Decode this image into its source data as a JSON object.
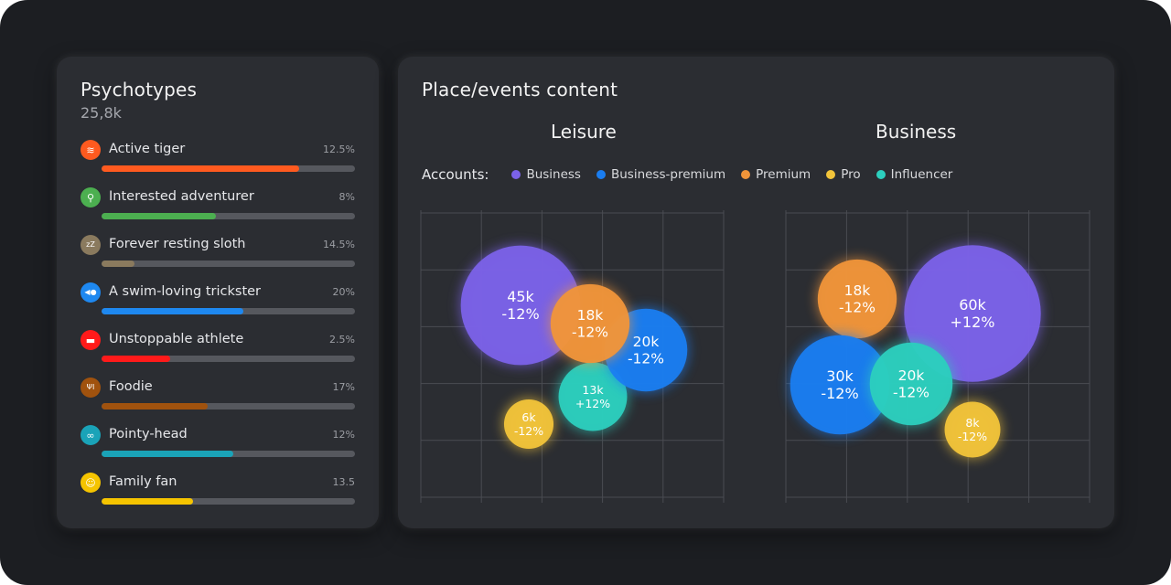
{
  "psychotypes": {
    "title": "Psychotypes",
    "total": "25,8k",
    "items": [
      {
        "label": "Active tiger",
        "percent_label": "12.5%",
        "fill": 0.78,
        "color": "#ff5a1f",
        "icon": "tiger-stripes-icon",
        "icon_glyph": "≋"
      },
      {
        "label": "Interested adventurer",
        "percent_label": "8%",
        "fill": 0.45,
        "color": "#4caf50",
        "icon": "magnifier-icon",
        "icon_glyph": "⚲"
      },
      {
        "label": "Forever resting sloth",
        "percent_label": "14.5%",
        "fill": 0.13,
        "color": "#8a7a5e",
        "icon": "sleep-zzz-icon",
        "icon_glyph": "zZ"
      },
      {
        "label": "A swim-loving trickster",
        "percent_label": "20%",
        "fill": 0.56,
        "color": "#1e88f0",
        "icon": "fish-icon",
        "icon_glyph": "◀●"
      },
      {
        "label": "Unstoppable athlete",
        "percent_label": "2.5%",
        "fill": 0.27,
        "color": "#ff1a1a",
        "icon": "sneaker-icon",
        "icon_glyph": "▬"
      },
      {
        "label": "Foodie",
        "percent_label": "17%",
        "fill": 0.42,
        "color": "#a0520e",
        "icon": "fork-knife-icon",
        "icon_glyph": "ΨΙ"
      },
      {
        "label": "Pointy-head",
        "percent_label": "12%",
        "fill": 0.52,
        "color": "#1aa3b8",
        "icon": "glasses-icon",
        "icon_glyph": "∞"
      },
      {
        "label": "Family fan",
        "percent_label": "13.5",
        "fill": 0.36,
        "color": "#f5c400",
        "icon": "smiley-icon",
        "icon_glyph": "☺"
      }
    ]
  },
  "place_events": {
    "title": "Place/events content",
    "accounts_label": "Accounts:",
    "legend": [
      {
        "label": "Business",
        "color": "#7b62e8"
      },
      {
        "label": "Business-premium",
        "color": "#1a7df0"
      },
      {
        "label": "Premium",
        "color": "#f0953a"
      },
      {
        "label": "Pro",
        "color": "#f2c43a"
      },
      {
        "label": "Influencer",
        "color": "#2ccfbe"
      }
    ]
  },
  "chart_data": [
    {
      "type": "bubble",
      "title": "Leisure",
      "bubbles": [
        {
          "category": "Business",
          "value": "45k",
          "change": "-12%",
          "color": "#7b62e8",
          "size": 45
        },
        {
          "category": "Influencer",
          "value": "13k",
          "change": "+12%",
          "color": "#2ccfbe",
          "size": 13
        },
        {
          "category": "Pro",
          "value": "6k",
          "change": "-12%",
          "color": "#f2c43a",
          "size": 6
        },
        {
          "category": "Business-premium",
          "value": "20k",
          "change": "-12%",
          "color": "#1a7df0",
          "size": 20
        },
        {
          "category": "Premium",
          "value": "18k",
          "change": "-12%",
          "color": "#f0953a",
          "size": 18
        }
      ]
    },
    {
      "type": "bubble",
      "title": "Business",
      "bubbles": [
        {
          "category": "Business",
          "value": "60k",
          "change": "+12%",
          "color": "#7b62e8",
          "size": 60
        },
        {
          "category": "Premium",
          "value": "18k",
          "change": "-12%",
          "color": "#f0953a",
          "size": 18
        },
        {
          "category": "Business-premium",
          "value": "30k",
          "change": "-12%",
          "color": "#1a7df0",
          "size": 30
        },
        {
          "category": "Influencer",
          "value": "20k",
          "change": "-12%",
          "color": "#2ccfbe",
          "size": 20
        },
        {
          "category": "Pro",
          "value": "8k",
          "change": "-12%",
          "color": "#f2c43a",
          "size": 8
        }
      ]
    }
  ]
}
